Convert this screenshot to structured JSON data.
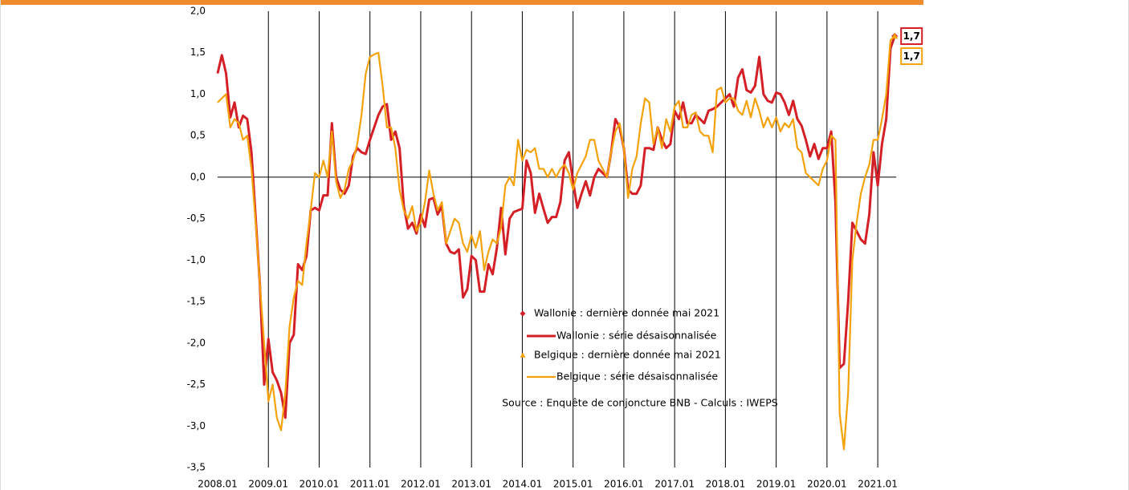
{
  "chart_data": {
    "type": "line",
    "categories": [
      "2008.01",
      null,
      null,
      null,
      null,
      null,
      null,
      null,
      null,
      null,
      null,
      null,
      "2009.01",
      null,
      null,
      null,
      null,
      null,
      null,
      null,
      null,
      null,
      null,
      null,
      "2010.01",
      null,
      null,
      null,
      null,
      null,
      null,
      null,
      null,
      null,
      null,
      null,
      "2011.01",
      null,
      null,
      null,
      null,
      null,
      null,
      null,
      null,
      null,
      null,
      null,
      "2012.01",
      null,
      null,
      null,
      null,
      null,
      null,
      null,
      null,
      null,
      null,
      null,
      "2013.01",
      null,
      null,
      null,
      null,
      null,
      null,
      null,
      null,
      null,
      null,
      null,
      "2014.01",
      null,
      null,
      null,
      null,
      null,
      null,
      null,
      null,
      null,
      null,
      null,
      "2015.01",
      null,
      null,
      null,
      null,
      null,
      null,
      null,
      null,
      null,
      null,
      null,
      "2016.01",
      null,
      null,
      null,
      null,
      null,
      null,
      null,
      null,
      null,
      null,
      null,
      "2017.01",
      null,
      null,
      null,
      null,
      null,
      null,
      null,
      null,
      null,
      null,
      null,
      "2018.01",
      null,
      null,
      null,
      null,
      null,
      null,
      null,
      null,
      null,
      null,
      null,
      "2019.01",
      null,
      null,
      null,
      null,
      null,
      null,
      null,
      null,
      null,
      null,
      null,
      "2020.01",
      null,
      null,
      null,
      null,
      null,
      null,
      null,
      null,
      null,
      null,
      null,
      "2021.01",
      null,
      null,
      null,
      null
    ],
    "series": [
      {
        "name": "Wallonie : dernière donnée mai 2021",
        "color": "#d51f26",
        "marker": "diamond",
        "values": [
          null,
          null,
          null,
          null,
          null,
          null,
          null,
          null,
          null,
          null,
          null,
          null,
          null,
          null,
          null,
          null,
          null,
          null,
          null,
          null,
          null,
          null,
          null,
          null,
          null,
          null,
          null,
          null,
          null,
          null,
          null,
          null,
          null,
          null,
          null,
          null,
          null,
          null,
          null,
          null,
          null,
          null,
          null,
          null,
          null,
          null,
          null,
          null,
          null,
          null,
          null,
          null,
          null,
          null,
          null,
          null,
          null,
          null,
          null,
          null,
          null,
          null,
          null,
          null,
          null,
          null,
          null,
          null,
          null,
          null,
          null,
          null,
          null,
          null,
          null,
          null,
          null,
          null,
          null,
          null,
          null,
          null,
          null,
          null,
          null,
          null,
          null,
          null,
          null,
          null,
          null,
          null,
          null,
          null,
          null,
          null,
          null,
          null,
          null,
          null,
          null,
          null,
          null,
          null,
          null,
          null,
          null,
          null,
          null,
          null,
          null,
          null,
          null,
          null,
          null,
          null,
          null,
          null,
          null,
          null,
          null,
          null,
          null,
          null,
          null,
          null,
          null,
          null,
          null,
          null,
          null,
          null,
          null,
          null,
          null,
          null,
          null,
          null,
          null,
          null,
          null,
          null,
          null,
          null,
          null,
          null,
          null,
          null,
          null,
          null,
          null,
          null,
          null,
          null,
          null,
          null,
          null,
          null,
          null,
          null,
          1.7
        ],
        "value_labels": [
          null,
          null,
          null,
          null,
          null,
          null,
          null,
          null,
          null,
          null,
          null,
          null,
          null,
          null,
          null,
          null,
          null,
          null,
          null,
          null,
          null,
          null,
          null,
          null,
          null,
          null,
          null,
          null,
          null,
          null,
          null,
          null,
          null,
          null,
          null,
          null,
          null,
          null,
          null,
          null,
          null,
          null,
          null,
          null,
          null,
          null,
          null,
          null,
          null,
          null,
          null,
          null,
          null,
          null,
          null,
          null,
          null,
          null,
          null,
          null,
          null,
          null,
          null,
          null,
          null,
          null,
          null,
          null,
          null,
          null,
          null,
          null,
          null,
          null,
          null,
          null,
          null,
          null,
          null,
          null,
          null,
          null,
          null,
          null,
          null,
          null,
          null,
          null,
          null,
          null,
          null,
          null,
          null,
          null,
          null,
          null,
          null,
          null,
          null,
          null,
          null,
          null,
          null,
          null,
          null,
          null,
          null,
          null,
          null,
          null,
          null,
          null,
          null,
          null,
          null,
          null,
          null,
          null,
          null,
          null,
          null,
          null,
          null,
          null,
          null,
          null,
          null,
          null,
          null,
          null,
          null,
          null,
          null,
          null,
          null,
          null,
          null,
          null,
          null,
          null,
          null,
          null,
          null,
          null,
          null,
          null,
          null,
          null,
          null,
          null,
          null,
          null,
          null,
          null,
          null,
          null,
          null,
          null,
          null,
          null,
          "1,7"
        ]
      },
      {
        "name": "Wallonie : série désaisonnalisée",
        "color": "#d51f26",
        "values": [
          1.25,
          1.47,
          1.25,
          0.72,
          0.9,
          0.6,
          0.74,
          0.7,
          0.3,
          -0.5,
          -1.3,
          -2.5,
          -1.95,
          -2.35,
          -2.45,
          -2.6,
          -2.9,
          -2.0,
          -1.9,
          -1.05,
          -1.12,
          -0.95,
          -0.4,
          -0.37,
          -0.4,
          -0.22,
          -0.22,
          0.65,
          0.0,
          -0.15,
          -0.2,
          -0.1,
          0.25,
          0.35,
          0.3,
          0.28,
          0.45,
          0.6,
          0.75,
          0.85,
          0.88,
          0.45,
          0.55,
          0.35,
          -0.35,
          -0.62,
          -0.55,
          -0.68,
          -0.45,
          -0.6,
          -0.27,
          -0.25,
          -0.45,
          -0.35,
          -0.8,
          -0.9,
          -0.92,
          -0.87,
          -1.45,
          -1.35,
          -0.95,
          -1.0,
          -1.38,
          -1.38,
          -1.05,
          -1.17,
          -0.85,
          -0.37,
          -0.93,
          -0.5,
          -0.42,
          -0.4,
          -0.38,
          0.2,
          0.05,
          -0.43,
          -0.2,
          -0.38,
          -0.55,
          -0.48,
          -0.48,
          -0.3,
          0.2,
          0.3,
          -0.05,
          -0.37,
          -0.2,
          -0.05,
          -0.22,
          0.0,
          0.1,
          0.05,
          0.0,
          0.3,
          0.7,
          0.6,
          0.35,
          -0.15,
          -0.2,
          -0.2,
          -0.1,
          0.35,
          0.35,
          0.33,
          0.6,
          0.45,
          0.35,
          0.4,
          0.8,
          0.7,
          0.9,
          0.65,
          0.65,
          0.75,
          0.7,
          0.65,
          0.8,
          0.82,
          0.85,
          0.9,
          0.95,
          1.0,
          0.85,
          1.2,
          1.3,
          1.05,
          1.02,
          1.1,
          1.45,
          1.0,
          0.92,
          0.9,
          1.02,
          1.0,
          0.9,
          0.75,
          0.92,
          0.7,
          0.62,
          0.45,
          0.25,
          0.4,
          0.22,
          0.35,
          0.35,
          0.55,
          -0.3,
          -2.3,
          -2.25,
          -1.5,
          -0.55,
          -0.65,
          -0.75,
          -0.8,
          -0.45,
          0.3,
          -0.1,
          0.4,
          0.7,
          1.55,
          1.7
        ]
      },
      {
        "name": "Belgique : dernière donnée mai 2021",
        "color": "#f4a20c",
        "marker": "triangle",
        "values": [
          null,
          null,
          null,
          null,
          null,
          null,
          null,
          null,
          null,
          null,
          null,
          null,
          null,
          null,
          null,
          null,
          null,
          null,
          null,
          null,
          null,
          null,
          null,
          null,
          null,
          null,
          null,
          null,
          null,
          null,
          null,
          null,
          null,
          null,
          null,
          null,
          null,
          null,
          null,
          null,
          null,
          null,
          null,
          null,
          null,
          null,
          null,
          null,
          null,
          null,
          null,
          null,
          null,
          null,
          null,
          null,
          null,
          null,
          null,
          null,
          null,
          null,
          null,
          null,
          null,
          null,
          null,
          null,
          null,
          null,
          null,
          null,
          null,
          null,
          null,
          null,
          null,
          null,
          null,
          null,
          null,
          null,
          null,
          null,
          null,
          null,
          null,
          null,
          null,
          null,
          null,
          null,
          null,
          null,
          null,
          null,
          null,
          null,
          null,
          null,
          null,
          null,
          null,
          null,
          null,
          null,
          null,
          null,
          null,
          null,
          null,
          null,
          null,
          null,
          null,
          null,
          null,
          null,
          null,
          null,
          null,
          null,
          null,
          null,
          null,
          null,
          null,
          null,
          null,
          null,
          null,
          null,
          null,
          null,
          null,
          null,
          null,
          null,
          null,
          null,
          null,
          null,
          null,
          null,
          null,
          null,
          null,
          null,
          null,
          null,
          null,
          null,
          null,
          null,
          null,
          null,
          null,
          null,
          null,
          null,
          1.7
        ],
        "value_labels": [
          null,
          null,
          null,
          null,
          null,
          null,
          null,
          null,
          null,
          null,
          null,
          null,
          null,
          null,
          null,
          null,
          null,
          null,
          null,
          null,
          null,
          null,
          null,
          null,
          null,
          null,
          null,
          null,
          null,
          null,
          null,
          null,
          null,
          null,
          null,
          null,
          null,
          null,
          null,
          null,
          null,
          null,
          null,
          null,
          null,
          null,
          null,
          null,
          null,
          null,
          null,
          null,
          null,
          null,
          null,
          null,
          null,
          null,
          null,
          null,
          null,
          null,
          null,
          null,
          null,
          null,
          null,
          null,
          null,
          null,
          null,
          null,
          null,
          null,
          null,
          null,
          null,
          null,
          null,
          null,
          null,
          null,
          null,
          null,
          null,
          null,
          null,
          null,
          null,
          null,
          null,
          null,
          null,
          null,
          null,
          null,
          null,
          null,
          null,
          null,
          null,
          null,
          null,
          null,
          null,
          null,
          null,
          null,
          null,
          null,
          null,
          null,
          null,
          null,
          null,
          null,
          null,
          null,
          null,
          null,
          null,
          null,
          null,
          null,
          null,
          null,
          null,
          null,
          null,
          null,
          null,
          null,
          null,
          null,
          null,
          null,
          null,
          null,
          null,
          null,
          null,
          null,
          null,
          null,
          null,
          null,
          null,
          null,
          null,
          null,
          null,
          null,
          null,
          null,
          null,
          null,
          null,
          null,
          null,
          null,
          "1,7"
        ]
      },
      {
        "name": "Belgique : série désaisonnalisée",
        "color": "#f4a20c",
        "values": [
          0.9,
          0.95,
          1.0,
          0.6,
          0.7,
          0.65,
          0.45,
          0.5,
          0.1,
          -0.55,
          -1.3,
          -2.0,
          -2.7,
          -2.5,
          -2.9,
          -3.05,
          -2.6,
          -1.8,
          -1.45,
          -1.25,
          -1.3,
          -0.8,
          -0.4,
          0.05,
          0.0,
          0.2,
          0.0,
          0.55,
          -0.05,
          -0.25,
          -0.15,
          0.1,
          0.2,
          0.4,
          0.75,
          1.25,
          1.45,
          1.48,
          1.5,
          1.1,
          0.6,
          0.6,
          0.35,
          -0.15,
          -0.4,
          -0.5,
          -0.35,
          -0.65,
          -0.55,
          -0.3,
          0.08,
          -0.2,
          -0.4,
          -0.3,
          -0.8,
          -0.65,
          -0.5,
          -0.55,
          -0.8,
          -0.9,
          -0.7,
          -0.85,
          -0.65,
          -1.12,
          -0.9,
          -0.75,
          -0.8,
          -0.6,
          -0.1,
          0.0,
          -0.1,
          0.45,
          0.2,
          0.33,
          0.3,
          0.35,
          0.1,
          0.1,
          0.0,
          0.1,
          0.0,
          0.1,
          0.15,
          0.05,
          -0.15,
          0.05,
          0.15,
          0.25,
          0.45,
          0.45,
          0.2,
          0.1,
          0.0,
          0.3,
          0.55,
          0.65,
          0.35,
          -0.25,
          0.1,
          0.25,
          0.65,
          0.95,
          0.9,
          0.4,
          0.6,
          0.35,
          0.7,
          0.55,
          0.85,
          0.92,
          0.6,
          0.6,
          0.75,
          0.78,
          0.55,
          0.5,
          0.5,
          0.3,
          1.05,
          1.08,
          0.9,
          0.95,
          0.95,
          0.8,
          0.75,
          0.92,
          0.72,
          0.95,
          0.8,
          0.6,
          0.72,
          0.6,
          0.72,
          0.55,
          0.65,
          0.6,
          0.7,
          0.35,
          0.3,
          0.05,
          0.0,
          -0.05,
          -0.1,
          0.1,
          0.2,
          0.5,
          0.45,
          -2.85,
          -3.28,
          -2.6,
          -1.0,
          -0.55,
          -0.2,
          0.0,
          0.15,
          0.45,
          0.45,
          0.7,
          1.0,
          1.65,
          1.7
        ]
      }
    ],
    "source": "Source : Enquête de conjoncture BNB - Calculs : IWEPS",
    "ylim": [
      -3.5,
      2.0
    ],
    "yticks": [
      {
        "value": 2.0,
        "label": "2,0"
      },
      {
        "value": 1.5,
        "label": "1,5"
      },
      {
        "value": 1.0,
        "label": "1,0"
      },
      {
        "value": 0.5,
        "label": "0,5"
      },
      {
        "value": 0.0,
        "label": "0,0"
      },
      {
        "value": -0.5,
        "label": "-0,5"
      },
      {
        "value": -1.0,
        "label": "-1,0"
      },
      {
        "value": -1.5,
        "label": "-1,5"
      },
      {
        "value": -2.0,
        "label": "-2,0"
      },
      {
        "value": -2.5,
        "label": "-2,5"
      },
      {
        "value": -3.0,
        "label": "-3,0"
      },
      {
        "value": -3.5,
        "label": "-3,5"
      }
    ],
    "zero_line": true,
    "x_grid": true
  }
}
